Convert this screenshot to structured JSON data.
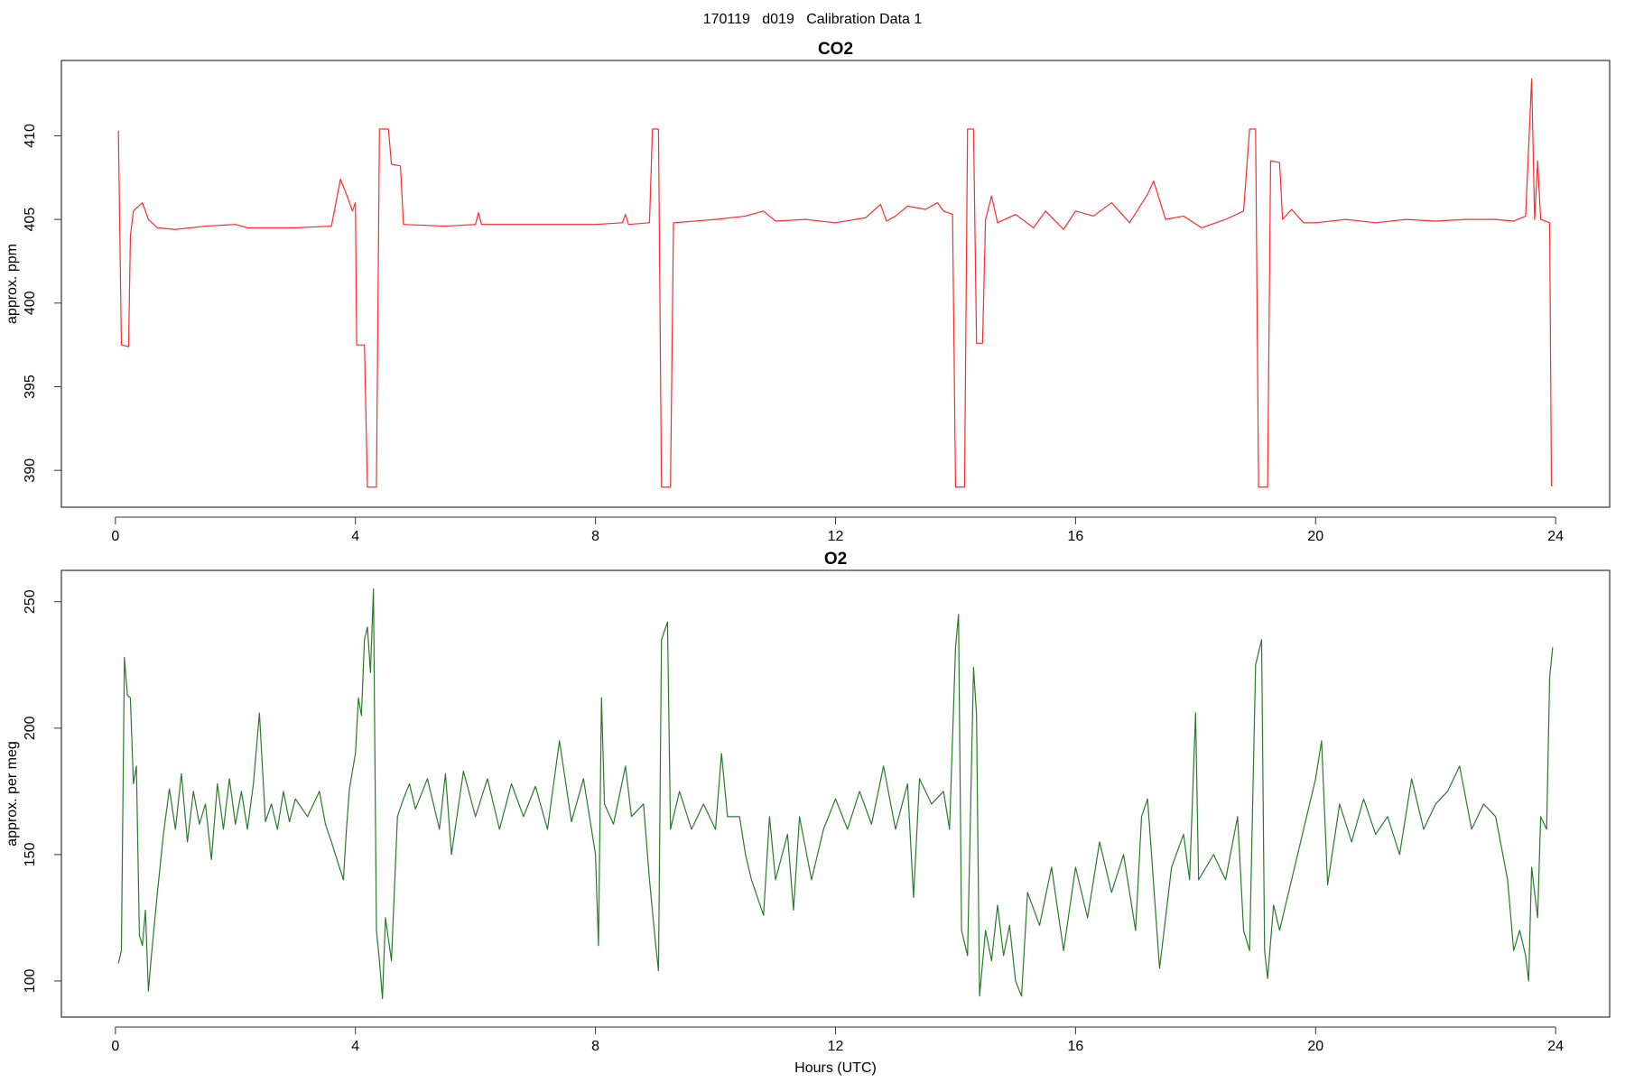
{
  "title": "170119   d019   Calibration Data 1",
  "chart_data": [
    {
      "type": "line",
      "title": "CO2",
      "ylabel": "approx. ppm",
      "x": [
        0.05,
        0.1,
        0.22,
        0.25,
        0.3,
        0.45,
        0.55,
        0.7,
        1.0,
        1.5,
        2.0,
        2.2,
        3.0,
        3.6,
        3.75,
        3.85,
        3.95,
        4.0,
        4.02,
        4.15,
        4.2,
        4.35,
        4.4,
        4.55,
        4.6,
        4.75,
        4.8,
        5.5,
        6.0,
        6.05,
        6.1,
        7,
        8,
        8.45,
        8.5,
        8.55,
        8.9,
        8.95,
        9.05,
        9.1,
        9.25,
        9.3,
        10,
        10.5,
        10.8,
        11,
        11.5,
        12,
        12.5,
        12.75,
        12.85,
        13,
        13.2,
        13.5,
        13.7,
        13.8,
        13.95,
        14.0,
        14.15,
        14.2,
        14.3,
        14.35,
        14.45,
        14.5,
        14.6,
        14.7,
        15,
        15.3,
        15.5,
        15.8,
        16,
        16.3,
        16.6,
        16.9,
        17.2,
        17.3,
        17.5,
        17.8,
        18.1,
        18.5,
        18.8,
        18.9,
        19.0,
        19.05,
        19.2,
        19.25,
        19.4,
        19.45,
        19.6,
        19.8,
        20,
        20.5,
        21,
        21.5,
        22,
        22.5,
        23,
        23.3,
        23.5,
        23.6,
        23.65,
        23.7,
        23.75,
        23.9,
        23.93,
        23.95
      ],
      "series": [
        {
          "color": "#ff2a2a",
          "values": [
            410.3,
            397.5,
            397.4,
            404,
            405.5,
            406,
            405,
            404.5,
            404.4,
            404.6,
            404.7,
            404.5,
            404.5,
            404.6,
            407.4,
            406.5,
            405.5,
            406,
            397.5,
            397.5,
            389,
            389,
            410.4,
            410.4,
            408.3,
            408.2,
            404.7,
            404.6,
            404.7,
            405.4,
            404.7,
            404.7,
            404.7,
            404.8,
            405.3,
            404.7,
            404.8,
            410.4,
            410.4,
            389,
            389,
            404.8,
            405,
            405.2,
            405.5,
            404.9,
            405,
            404.8,
            405.1,
            405.9,
            404.9,
            405.2,
            405.8,
            405.6,
            406,
            405.5,
            405.3,
            389,
            389,
            410.4,
            410.4,
            397.6,
            397.6,
            405,
            406.4,
            404.8,
            405.3,
            404.5,
            405.5,
            404.4,
            405.5,
            405.2,
            406,
            404.8,
            406.5,
            407.3,
            405,
            405.2,
            404.5,
            405,
            405.5,
            410.4,
            410.4,
            389,
            389,
            408.5,
            408.4,
            405,
            405.6,
            404.8,
            404.8,
            405,
            404.8,
            405,
            404.9,
            405,
            405,
            404.9,
            405.2,
            413.4,
            405,
            408.5,
            405,
            404.8,
            389.1,
            389.1
          ]
        }
      ],
      "xlim": [
        -0.9,
        24.9
      ],
      "xticks": [
        0,
        4,
        8,
        12,
        16,
        20,
        24
      ],
      "ylim": [
        387.8,
        414.5
      ],
      "yticks": [
        390,
        395,
        400,
        405,
        410
      ]
    },
    {
      "type": "line",
      "title": "O2",
      "ylabel": "approx. per meg",
      "xlabel": "Hours (UTC)",
      "x": [
        0.05,
        0.1,
        0.15,
        0.2,
        0.25,
        0.3,
        0.35,
        0.4,
        0.45,
        0.5,
        0.55,
        0.6,
        0.7,
        0.8,
        0.9,
        1.0,
        1.1,
        1.2,
        1.3,
        1.4,
        1.5,
        1.6,
        1.7,
        1.8,
        1.9,
        2.0,
        2.1,
        2.2,
        2.3,
        2.4,
        2.5,
        2.6,
        2.7,
        2.8,
        2.9,
        3.0,
        3.2,
        3.4,
        3.5,
        3.6,
        3.8,
        3.85,
        3.9,
        4.0,
        4.05,
        4.1,
        4.15,
        4.2,
        4.25,
        4.3,
        4.35,
        4.4,
        4.45,
        4.5,
        4.6,
        4.7,
        4.8,
        4.9,
        5.0,
        5.2,
        5.4,
        5.5,
        5.6,
        5.8,
        6.0,
        6.2,
        6.4,
        6.6,
        6.8,
        7.0,
        7.2,
        7.4,
        7.6,
        7.8,
        8.0,
        8.05,
        8.1,
        8.15,
        8.3,
        8.5,
        8.6,
        8.8,
        8.9,
        9.0,
        9.05,
        9.1,
        9.2,
        9.25,
        9.4,
        9.6,
        9.8,
        10.0,
        10.1,
        10.2,
        10.4,
        10.5,
        10.6,
        10.8,
        10.9,
        11.0,
        11.2,
        11.3,
        11.4,
        11.6,
        11.8,
        12.0,
        12.2,
        12.4,
        12.6,
        12.8,
        13.0,
        13.2,
        13.3,
        13.4,
        13.6,
        13.8,
        13.9,
        14.0,
        14.05,
        14.1,
        14.2,
        14.3,
        14.35,
        14.4,
        14.5,
        14.6,
        14.7,
        14.8,
        14.9,
        15.0,
        15.1,
        15.2,
        15.4,
        15.6,
        15.8,
        16.0,
        16.2,
        16.4,
        16.6,
        16.8,
        17.0,
        17.1,
        17.2,
        17.4,
        17.6,
        17.8,
        17.9,
        18.0,
        18.05,
        18.3,
        18.5,
        18.7,
        18.8,
        18.9,
        19.0,
        19.1,
        19.15,
        19.2,
        19.3,
        19.4,
        19.6,
        19.8,
        20.0,
        20.1,
        20.2,
        20.4,
        20.6,
        20.8,
        21.0,
        21.2,
        21.4,
        21.6,
        21.8,
        22.0,
        22.2,
        22.4,
        22.6,
        22.8,
        23.0,
        23.2,
        23.3,
        23.4,
        23.5,
        23.55,
        23.6,
        23.7,
        23.75,
        23.85,
        23.9,
        23.95
      ],
      "series": [
        {
          "color": "#2a7a2a",
          "values": [
            107,
            112,
            228,
            213,
            212,
            178,
            185,
            118,
            114,
            128,
            96,
            110,
            135,
            158,
            176,
            160,
            182,
            155,
            175,
            162,
            170,
            148,
            178,
            160,
            180,
            162,
            175,
            160,
            178,
            206,
            163,
            170,
            160,
            175,
            163,
            172,
            165,
            175,
            162,
            155,
            140,
            160,
            176,
            190,
            212,
            205,
            235,
            240,
            222,
            255,
            120,
            108,
            93,
            125,
            108,
            165,
            172,
            178,
            168,
            180,
            160,
            182,
            150,
            183,
            165,
            180,
            160,
            178,
            165,
            177,
            160,
            195,
            163,
            180,
            150,
            114,
            212,
            170,
            162,
            185,
            165,
            170,
            140,
            115,
            104,
            235,
            242,
            160,
            175,
            160,
            170,
            160,
            190,
            165,
            165,
            150,
            140,
            126,
            165,
            140,
            158,
            128,
            165,
            140,
            160,
            172,
            160,
            175,
            162,
            185,
            160,
            178,
            133,
            180,
            170,
            175,
            160,
            232,
            245,
            120,
            110,
            224,
            205,
            94,
            120,
            108,
            130,
            110,
            122,
            100,
            94,
            135,
            122,
            145,
            112,
            145,
            125,
            155,
            135,
            150,
            120,
            165,
            172,
            105,
            145,
            158,
            140,
            206,
            140,
            150,
            140,
            165,
            120,
            112,
            225,
            235,
            112,
            101,
            130,
            120,
            140,
            160,
            180,
            195,
            138,
            170,
            155,
            172,
            158,
            165,
            150,
            180,
            160,
            170,
            175,
            185,
            160,
            170,
            165,
            140,
            112,
            120,
            110,
            100,
            145,
            125,
            165,
            160,
            220,
            232
          ]
        }
      ],
      "xlim": [
        -0.9,
        24.9
      ],
      "xticks": [
        0,
        4,
        8,
        12,
        16,
        20,
        24
      ],
      "ylim": [
        85.7,
        262.4
      ],
      "yticks": [
        100,
        150,
        200,
        250
      ]
    }
  ]
}
